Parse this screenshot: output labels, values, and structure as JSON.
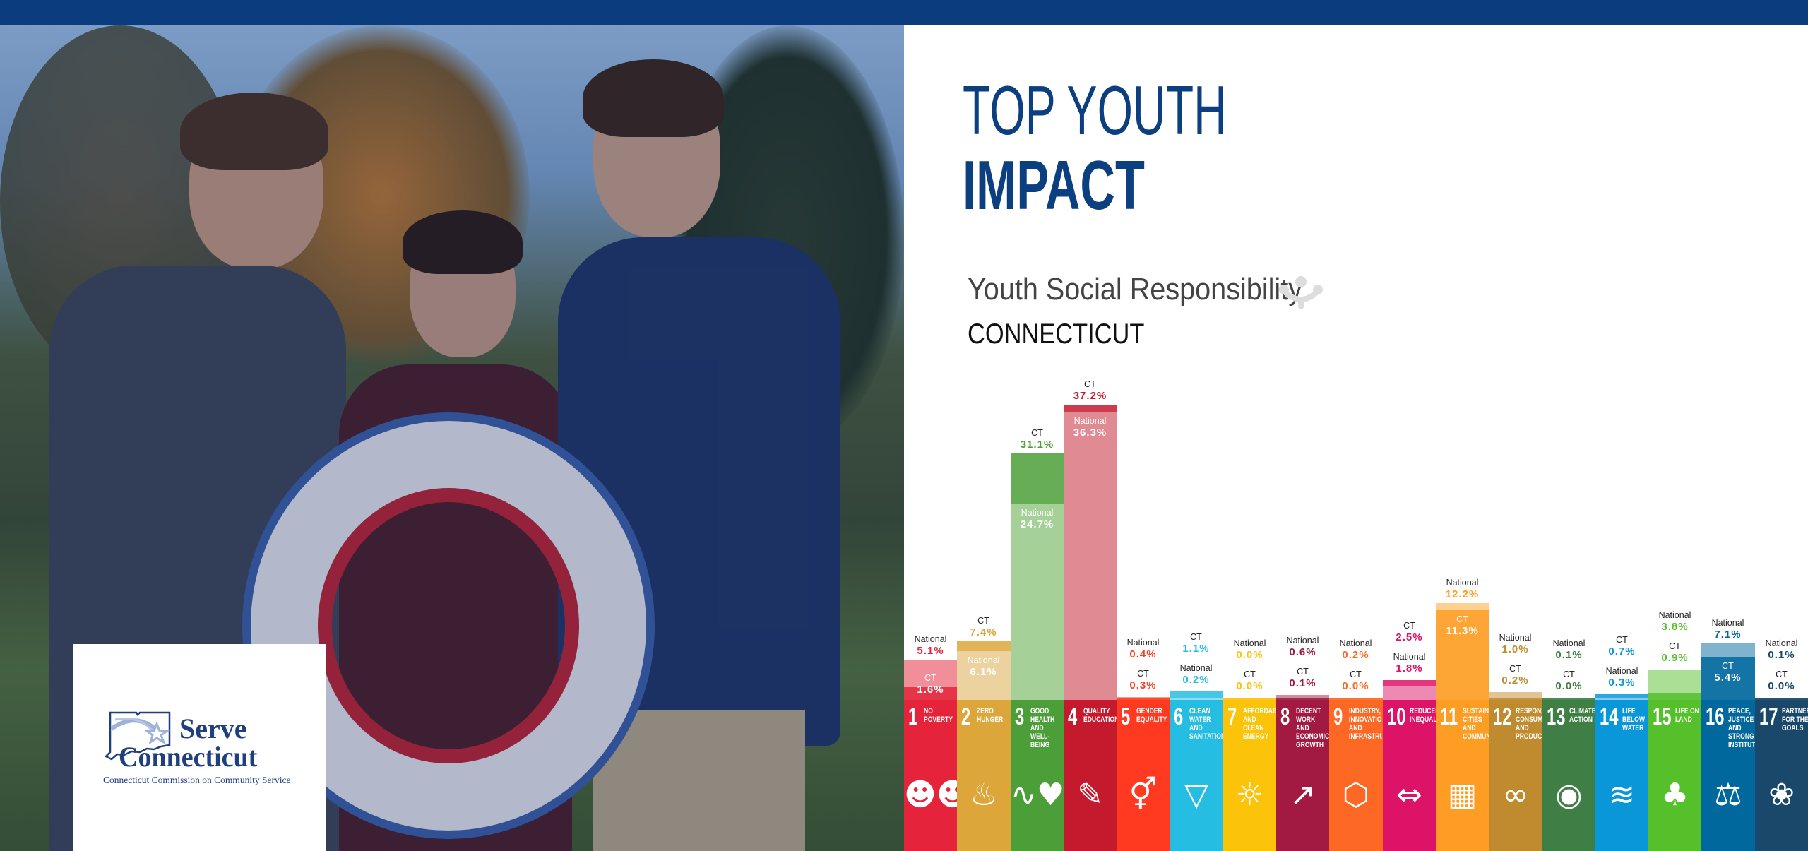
{
  "header": {
    "bar_color": "#0b3d7e"
  },
  "hero": {
    "title_line1": "TOP YOUTH",
    "title_line2": "IMPACT",
    "subtitle": "Youth Social Responsibility",
    "state": "CONNECTICUT",
    "title_color": "#0b3f80",
    "subtitle_icon": "ysr-people-icon"
  },
  "logo": {
    "line1": "Serve",
    "line2": "Connecticut",
    "tagline": "Connecticut Commission on Community Service",
    "icon": "connecticut-map-star-icon"
  },
  "chart_data": {
    "type": "bar",
    "series_labels": {
      "ct": "CT",
      "national": "National"
    },
    "unit": "%",
    "categories": [
      {
        "num": "1",
        "title": "NO POVERTY",
        "color": "#e5243b",
        "light": "#f08e9a",
        "icon": "family-icon",
        "glyph": "☻☻☻",
        "ct": 1.6,
        "national": 5.1
      },
      {
        "num": "2",
        "title": "ZERO HUNGER",
        "color": "#dda63a",
        "light": "#ecd29e",
        "icon": "bowl-icon",
        "glyph": "♨",
        "ct": 7.4,
        "national": 6.1
      },
      {
        "num": "3",
        "title": "GOOD HEALTH AND WELL-BEING",
        "color": "#4c9f38",
        "light": "#a5d098",
        "icon": "heartbeat-icon",
        "glyph": "∿♥",
        "ct": 31.1,
        "national": 24.7
      },
      {
        "num": "4",
        "title": "QUALITY EDUCATION",
        "color": "#c5192d",
        "light": "#e08a93",
        "icon": "book-icon",
        "glyph": "✎",
        "ct": 37.2,
        "national": 36.3
      },
      {
        "num": "5",
        "title": "GENDER EQUALITY",
        "color": "#ff3a21",
        "light": "#ff9c8f",
        "icon": "gender-icon",
        "glyph": "⚥",
        "ct": 0.3,
        "national": 0.4
      },
      {
        "num": "6",
        "title": "CLEAN WATER AND SANITATION",
        "color": "#26bde2",
        "light": "#8fdcef",
        "icon": "water-glass-icon",
        "glyph": "▽",
        "ct": 1.1,
        "national": 0.2
      },
      {
        "num": "7",
        "title": "AFFORDABLE AND CLEAN ENERGY",
        "color": "#fcc30b",
        "light": "#fde185",
        "icon": "sun-power-icon",
        "glyph": "☼",
        "ct": 0.0,
        "national": 0.0
      },
      {
        "num": "8",
        "title": "DECENT WORK AND ECONOMIC GROWTH",
        "color": "#a21942",
        "light": "#d08ca0",
        "icon": "growth-chart-icon",
        "glyph": "↗",
        "ct": 0.1,
        "national": 0.6
      },
      {
        "num": "9",
        "title": "INDUSTRY, INNOVATION AND INFRASTRUCTURE",
        "color": "#fd6925",
        "light": "#feb492",
        "icon": "cubes-icon",
        "glyph": "⬡",
        "ct": 0.0,
        "national": 0.2
      },
      {
        "num": "10",
        "title": "REDUCED INEQUALITIES",
        "color": "#dd1367",
        "light": "#ee89b3",
        "icon": "equality-arrows-icon",
        "glyph": "⇔",
        "ct": 2.5,
        "national": 1.8
      },
      {
        "num": "11",
        "title": "SUSTAINABLE CITIES AND COMMUNITIES",
        "color": "#fd9d24",
        "light": "#fed092",
        "icon": "city-buildings-icon",
        "glyph": "▦",
        "ct": 11.3,
        "national": 12.2
      },
      {
        "num": "12",
        "title": "RESPONSIBLE CONSUMPTION AND PRODUCTION",
        "color": "#bf8b2e",
        "light": "#dfc596",
        "icon": "infinity-icon",
        "glyph": "∞",
        "ct": 0.2,
        "national": 1.0
      },
      {
        "num": "13",
        "title": "CLIMATE ACTION",
        "color": "#3f7e44",
        "light": "#9fbfa1",
        "icon": "eye-globe-icon",
        "glyph": "◉",
        "ct": 0.0,
        "national": 0.1
      },
      {
        "num": "14",
        "title": "LIFE BELOW WATER",
        "color": "#0a97d9",
        "light": "#84cbec",
        "icon": "fish-icon",
        "glyph": "≋",
        "ct": 0.7,
        "national": 0.3
      },
      {
        "num": "15",
        "title": "LIFE ON LAND",
        "color": "#56c02b",
        "light": "#aadf95",
        "icon": "tree-icon",
        "glyph": "♣",
        "ct": 0.9,
        "national": 3.8
      },
      {
        "num": "16",
        "title": "PEACE, JUSTICE AND STRONG INSTITUTIONS",
        "color": "#00689d",
        "light": "#7fb3ce",
        "icon": "dove-gavel-icon",
        "glyph": "⚖",
        "ct": 5.4,
        "national": 7.1
      },
      {
        "num": "17",
        "title": "PARTNERSHIPS FOR THE GOALS",
        "color": "#19486a",
        "light": "#8ca3b4",
        "icon": "rings-icon",
        "glyph": "❀",
        "ct": 0.0,
        "national": 0.1
      }
    ],
    "ylim": [
      0,
      37.2
    ],
    "grid": false,
    "legend": "none"
  }
}
